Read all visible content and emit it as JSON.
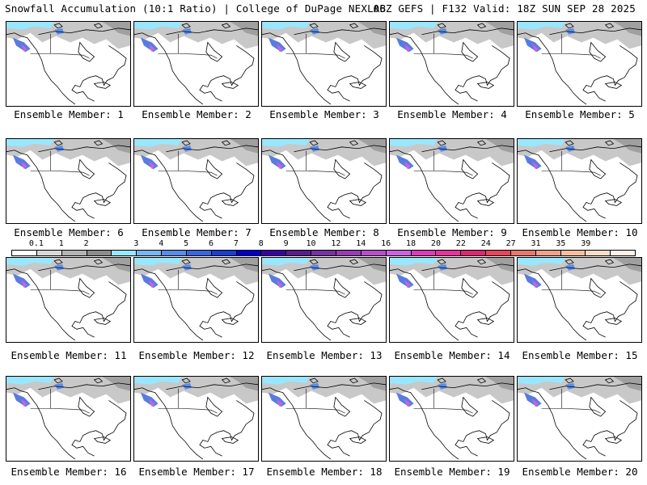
{
  "header": {
    "left": "Snowfall Accumulation (10:1 Ratio) | College of DuPage NEXLAB",
    "right": "06Z GEFS | F132 Valid: 18Z SUN SEP 28 2025"
  },
  "colorbar": {
    "labels": [
      "0.1",
      "1",
      "2",
      "3",
      "4",
      "5",
      "6",
      "7",
      "8",
      "9",
      "10",
      "12",
      "14",
      "16",
      "18",
      "20",
      "22",
      "24",
      "27",
      "31",
      "35",
      "39"
    ],
    "colors": [
      "#ffffff",
      "#d8d8d8",
      "#b4b4b4",
      "#8c8c8c",
      "#99e6ff",
      "#7ab4f0",
      "#5a8ce6",
      "#3c64dc",
      "#1e3cd2",
      "#0000c8",
      "#3c00a0",
      "#5a1e8c",
      "#7832a0",
      "#963cb4",
      "#b450c8",
      "#c864dc",
      "#dc3cb4",
      "#e6329b",
      "#dc286e",
      "#e6465a",
      "#e6786e",
      "#f0a08c",
      "#f5bea0",
      "#fadcc8",
      "#fff0e6"
    ]
  },
  "members": [
    {
      "label": "Ensemble Member: 1"
    },
    {
      "label": "Ensemble Member: 2"
    },
    {
      "label": "Ensemble Member: 3"
    },
    {
      "label": "Ensemble Member: 4"
    },
    {
      "label": "Ensemble Member: 5"
    },
    {
      "label": "Ensemble Member: 6"
    },
    {
      "label": "Ensemble Member: 7"
    },
    {
      "label": "Ensemble Member: 8"
    },
    {
      "label": "Ensemble Member: 9"
    },
    {
      "label": "Ensemble Member: 10"
    },
    {
      "label": "Ensemble Member: 11"
    },
    {
      "label": "Ensemble Member: 12"
    },
    {
      "label": "Ensemble Member: 13"
    },
    {
      "label": "Ensemble Member: 14"
    },
    {
      "label": "Ensemble Member: 15"
    },
    {
      "label": "Ensemble Member: 16"
    },
    {
      "label": "Ensemble Member: 17"
    },
    {
      "label": "Ensemble Member: 18"
    },
    {
      "label": "Ensemble Member: 19"
    },
    {
      "label": "Ensemble Member: 20"
    }
  ]
}
